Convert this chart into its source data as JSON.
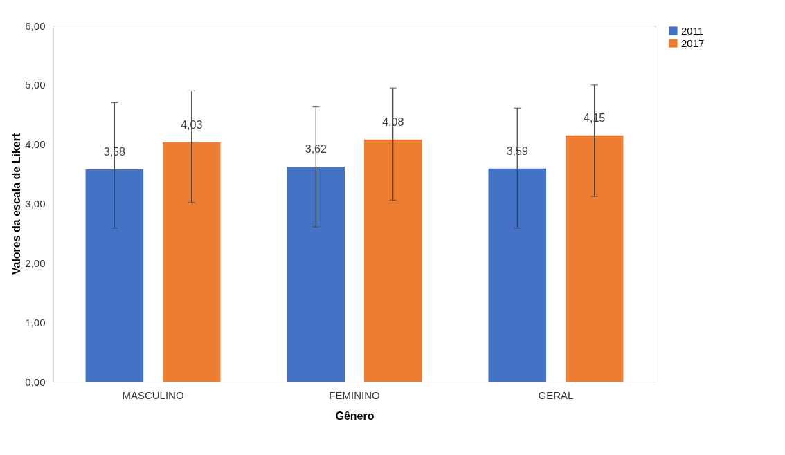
{
  "chart_data": {
    "type": "bar",
    "xlabel": "Gênero",
    "ylabel": "Valores da escala de Likert",
    "categories": [
      "MASCULINO",
      "FEMININO",
      "GERAL"
    ],
    "series": [
      {
        "name": "2011",
        "color": "#4472c4",
        "values": [
          3.58,
          3.62,
          3.59
        ],
        "value_labels": [
          "3,58",
          "3,62",
          "3,59"
        ],
        "errors": [
          [
            2.59,
            4.7
          ],
          [
            2.61,
            4.63
          ],
          [
            2.59,
            4.61
          ]
        ]
      },
      {
        "name": "2017",
        "color": "#ed7d31",
        "values": [
          4.03,
          4.08,
          4.15
        ],
        "value_labels": [
          "4,03",
          "4,08",
          "4,15"
        ],
        "errors": [
          [
            3.02,
            4.9
          ],
          [
            3.06,
            4.95
          ],
          [
            3.12,
            5.0
          ]
        ]
      }
    ],
    "ylim": [
      0,
      6
    ],
    "yticks": [
      {
        "value": 0,
        "label": "0,00"
      },
      {
        "value": 1,
        "label": "1,00"
      },
      {
        "value": 2,
        "label": "2,00"
      },
      {
        "value": 3,
        "label": "3,00"
      },
      {
        "value": 4,
        "label": "4,00"
      },
      {
        "value": 5,
        "label": "5,00"
      },
      {
        "value": 6,
        "label": "6,00"
      }
    ],
    "grid": false,
    "legend": "right"
  }
}
